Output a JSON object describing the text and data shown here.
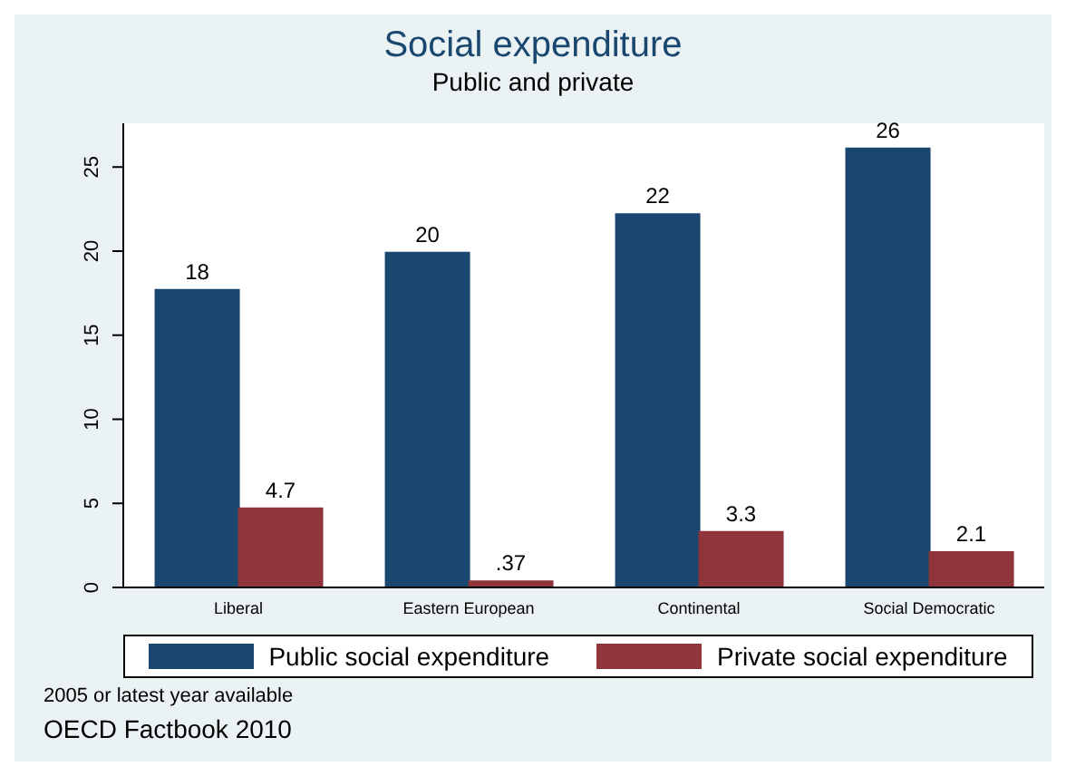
{
  "chart_data": {
    "type": "bar",
    "title": "Social expenditure",
    "subtitle": "Public and private",
    "categories": [
      "Liberal",
      "Eastern European",
      "Continental",
      "Social Democratic"
    ],
    "series": [
      {
        "name": "Public social expenditure",
        "color": "#1a476f",
        "values": [
          17.7,
          19.9,
          22.2,
          26.1
        ],
        "value_labels": [
          "18",
          "20",
          "22",
          "26"
        ]
      },
      {
        "name": "Private social expenditure",
        "color": "#90353b",
        "values": [
          4.7,
          0.37,
          3.3,
          2.1
        ],
        "value_labels": [
          "4.7",
          ".37",
          "3.3",
          "2.1"
        ]
      }
    ],
    "ylim": [
      0,
      27.6
    ],
    "yticks": [
      0,
      5,
      10,
      15,
      20,
      25
    ],
    "legend": "bottom",
    "annotations": [
      "2005 or latest year available",
      "OECD Factbook 2010"
    ]
  }
}
